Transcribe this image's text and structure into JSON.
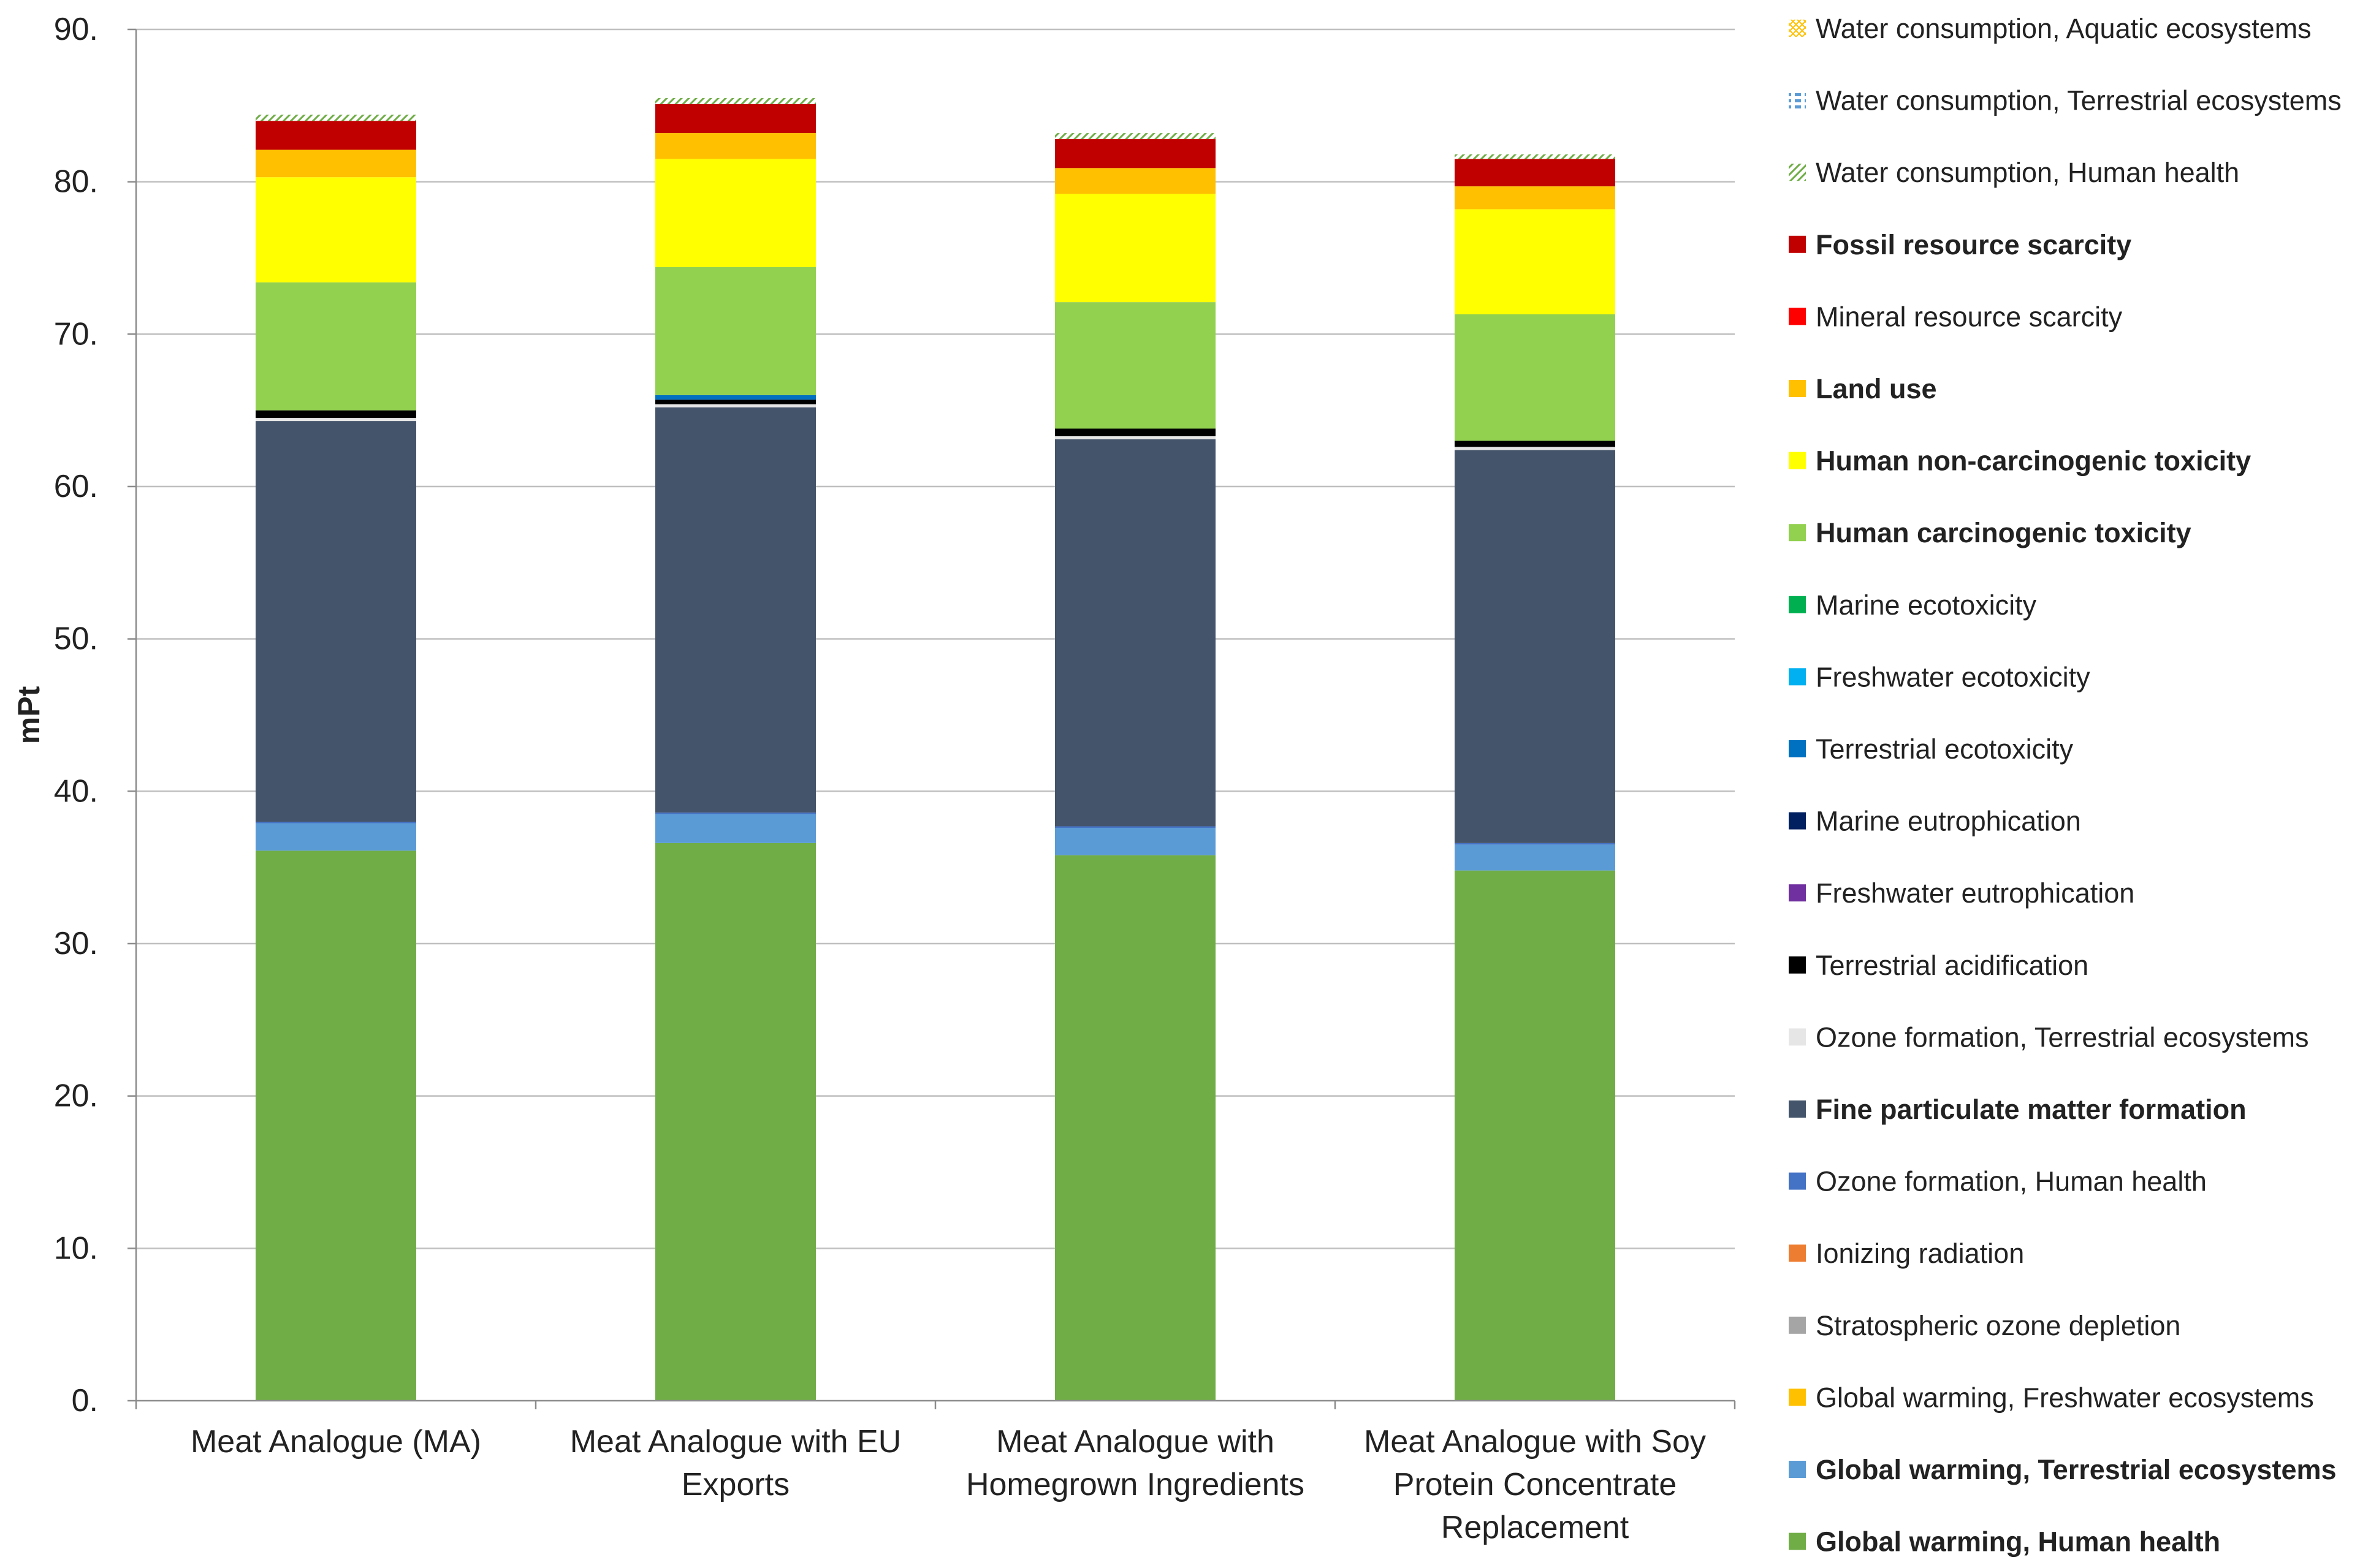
{
  "chart_data": {
    "type": "bar",
    "stacked": true,
    "ylabel": "mPt",
    "xlabel": "",
    "ylim": [
      0,
      90
    ],
    "yticks": [
      "0.",
      "10.",
      "20.",
      "30.",
      "40.",
      "50.",
      "60.",
      "70.",
      "80.",
      "90."
    ],
    "grid": true,
    "legend_position": "right",
    "categories": [
      [
        "Meat Analogue (MA)"
      ],
      [
        "Meat Analogue with EU",
        "Exports"
      ],
      [
        "Meat Analogue with",
        "Homegrown Ingredients"
      ],
      [
        "Meat Analogue with Soy",
        "Protein Concentrate",
        "Replacement"
      ]
    ],
    "series": [
      {
        "name": "Global warming, Human health",
        "color": "#70ad47",
        "bold": true,
        "pattern": "solid",
        "values": [
          36.1,
          36.6,
          35.8,
          34.8
        ]
      },
      {
        "name": "Global warming, Terrestrial ecosystems",
        "color": "#5b9bd5",
        "bold": true,
        "pattern": "solid",
        "values": [
          1.8,
          1.9,
          1.8,
          1.7
        ]
      },
      {
        "name": "Global warming, Freshwater ecosystems",
        "color": "#ffc000",
        "bold": false,
        "pattern": "solid",
        "values": [
          0.0,
          0.0,
          0.0,
          0.0
        ]
      },
      {
        "name": "Stratospheric ozone depletion",
        "color": "#a5a5a5",
        "bold": false,
        "pattern": "solid",
        "values": [
          0.0,
          0.0,
          0.0,
          0.0
        ]
      },
      {
        "name": "Ionizing radiation",
        "color": "#ed7d31",
        "bold": false,
        "pattern": "solid",
        "values": [
          0.0,
          0.0,
          0.0,
          0.0
        ]
      },
      {
        "name": "Ozone formation, Human health",
        "color": "#4472c4",
        "bold": false,
        "pattern": "solid",
        "values": [
          0.1,
          0.1,
          0.1,
          0.1
        ]
      },
      {
        "name": "Fine particulate matter formation",
        "color": "#44546a",
        "bold": true,
        "pattern": "solid",
        "values": [
          26.3,
          26.6,
          25.4,
          25.8
        ]
      },
      {
        "name": "Ozone formation, Terrestrial ecosystems",
        "color": "#e7e6e6",
        "bold": false,
        "pattern": "solid",
        "values": [
          0.2,
          0.2,
          0.2,
          0.2
        ]
      },
      {
        "name": "Terrestrial acidification",
        "color": "#000000",
        "bold": false,
        "pattern": "solid",
        "values": [
          0.5,
          0.3,
          0.5,
          0.4
        ]
      },
      {
        "name": "Freshwater eutrophication",
        "color": "#7030a0",
        "bold": false,
        "pattern": "solid",
        "values": [
          0.0,
          0.0,
          0.0,
          0.0
        ]
      },
      {
        "name": "Marine eutrophication",
        "color": "#002060",
        "bold": false,
        "pattern": "solid",
        "values": [
          0.0,
          0.0,
          0.0,
          0.0
        ]
      },
      {
        "name": "Terrestrial ecotoxicity",
        "color": "#0070c0",
        "bold": false,
        "pattern": "solid",
        "values": [
          0.0,
          0.3,
          0.0,
          0.0
        ]
      },
      {
        "name": "Freshwater ecotoxicity",
        "color": "#00b0f0",
        "bold": false,
        "pattern": "solid",
        "values": [
          0.0,
          0.0,
          0.0,
          0.0
        ]
      },
      {
        "name": "Marine ecotoxicity",
        "color": "#00b050",
        "bold": false,
        "pattern": "solid",
        "values": [
          0.0,
          0.0,
          0.0,
          0.0
        ]
      },
      {
        "name": "Human carcinogenic toxicity",
        "color": "#92d050",
        "bold": true,
        "pattern": "solid",
        "values": [
          8.4,
          8.4,
          8.3,
          8.3
        ]
      },
      {
        "name": "Human non-carcinogenic toxicity",
        "color": "#ffff00",
        "bold": true,
        "pattern": "solid",
        "values": [
          6.9,
          7.1,
          7.1,
          6.9
        ]
      },
      {
        "name": "Land use",
        "color": "#ffc000",
        "bold": true,
        "pattern": "solid",
        "values": [
          1.8,
          1.7,
          1.7,
          1.5
        ]
      },
      {
        "name": "Mineral resource scarcity",
        "color": "#ff0000",
        "bold": false,
        "pattern": "solid",
        "values": [
          0.0,
          0.0,
          0.0,
          0.0
        ]
      },
      {
        "name": "Fossil resource scarcity",
        "color": "#c00000",
        "bold": true,
        "pattern": "solid",
        "values": [
          1.9,
          1.9,
          1.9,
          1.8
        ]
      },
      {
        "name": "Water consumption, Human health",
        "color": "#70ad47",
        "bold": false,
        "pattern": "diag",
        "values": [
          0.4,
          0.4,
          0.4,
          0.3
        ]
      },
      {
        "name": "Water consumption, Terrestrial ecosystems",
        "color": "#5b9bd5",
        "bold": false,
        "pattern": "dash",
        "values": [
          0.0,
          0.0,
          0.0,
          0.0
        ]
      },
      {
        "name": "Water consumption, Aquatic ecosystems",
        "color": "#ffc000",
        "bold": false,
        "pattern": "dots",
        "values": [
          0.0,
          0.0,
          0.0,
          0.0
        ]
      }
    ]
  }
}
